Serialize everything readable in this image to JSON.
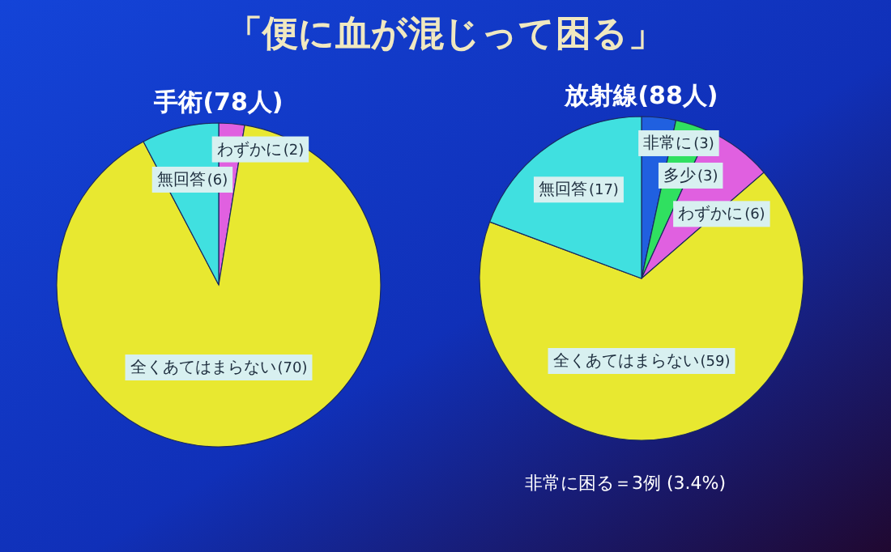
{
  "chart_data": [
    {
      "type": "pie",
      "title": "「便に血が混じって困る」",
      "subtitle": "手術(78人)",
      "categories": [
        "わずかに",
        "全くあてはまらない",
        "無回答"
      ],
      "values": [
        2,
        70,
        6
      ],
      "colors": [
        "#e060e0",
        "#e8e830",
        "#40e0e0"
      ],
      "value_labels": [
        "(2)",
        "(70)",
        "(6)"
      ]
    },
    {
      "type": "pie",
      "subtitle": "放射線(88人)",
      "categories": [
        "非常に",
        "多少",
        "わずかに",
        "全くあてはまらない",
        "無回答"
      ],
      "values": [
        3,
        3,
        6,
        59,
        17
      ],
      "colors": [
        "#2060e0",
        "#30e060",
        "#e060e0",
        "#e8e830",
        "#40e0e0"
      ],
      "value_labels": [
        "(3)",
        "(3)",
        "(6)",
        "(59)",
        "(17)"
      ],
      "annotations": [
        "非常に困る＝3例 (3.4%)"
      ]
    }
  ]
}
